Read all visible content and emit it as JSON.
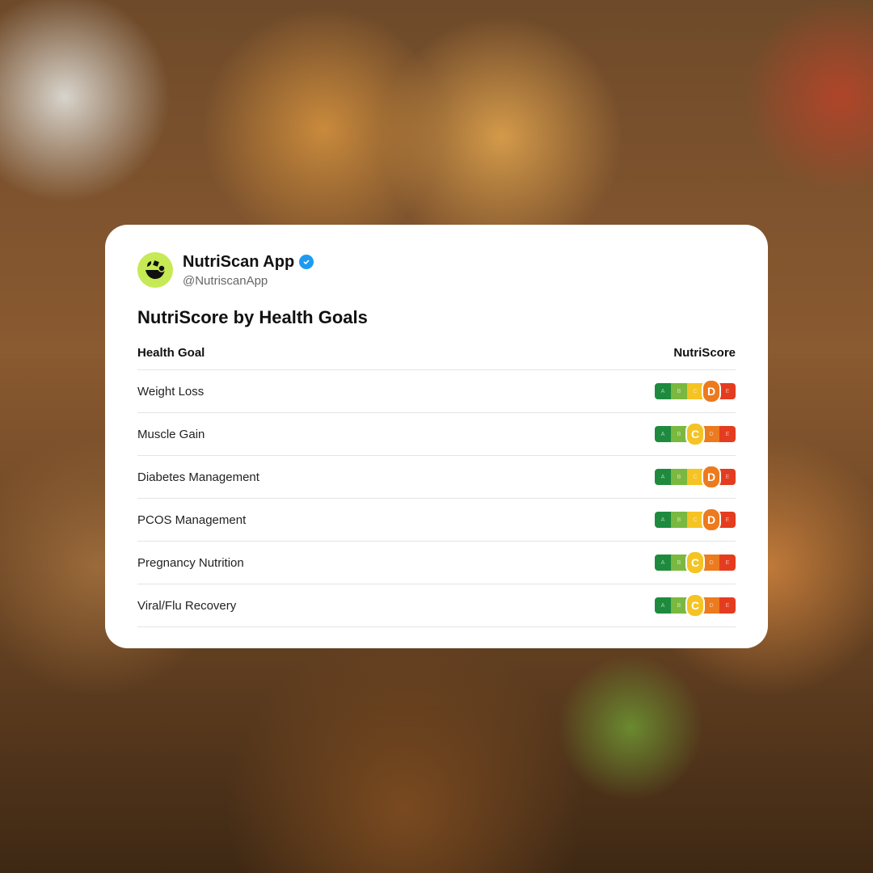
{
  "account": {
    "name": "NutriScan App",
    "handle": "@NutriscanApp",
    "verified": true,
    "logo_color": "#c6ea55"
  },
  "title": "NutriScore by Health Goals",
  "table": {
    "headers": [
      "Health Goal",
      "NutriScore"
    ],
    "grades": [
      "A",
      "B",
      "C",
      "D",
      "E"
    ],
    "grade_colors": [
      "#1e8a3e",
      "#7ab840",
      "#f5c324",
      "#ec7a1e",
      "#e43c1e"
    ],
    "rows": [
      {
        "goal": "Weight Loss",
        "score": "D"
      },
      {
        "goal": "Muscle Gain",
        "score": "C"
      },
      {
        "goal": "Diabetes Management",
        "score": "D"
      },
      {
        "goal": "PCOS Management",
        "score": "D"
      },
      {
        "goal": "Pregnancy Nutrition",
        "score": "C"
      },
      {
        "goal": "Viral/Flu Recovery",
        "score": "C"
      }
    ]
  }
}
